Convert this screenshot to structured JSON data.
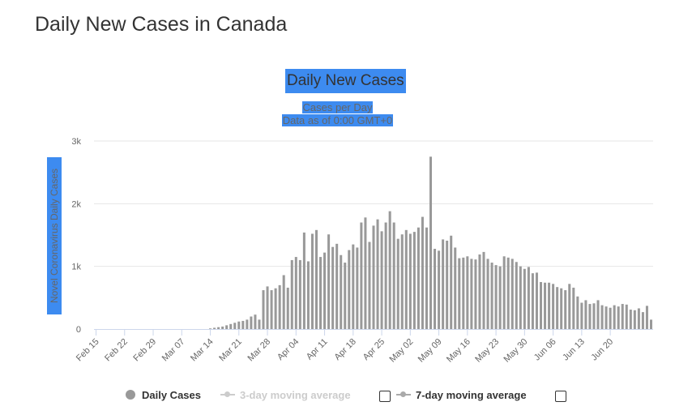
{
  "page": {
    "title": "Daily New Cases in Canada"
  },
  "chart_data": {
    "type": "bar",
    "title": "Daily New Cases",
    "subtitle_lines": [
      "Cases per Day",
      "Data as of 0:00 GMT+0"
    ],
    "xlabel": "",
    "ylabel": "Novel Coronavirus Daily Cases",
    "ylim": [
      0,
      3000
    ],
    "yticks": [
      0,
      1000,
      2000,
      3000
    ],
    "ytick_labels": [
      "0",
      "1k",
      "2k",
      "3k"
    ],
    "grid": true,
    "x_range": [
      "2020-02-15",
      "2020-06-27"
    ],
    "xtick_labels": [
      "Feb 15",
      "Feb 22",
      "Feb 29",
      "Mar 07",
      "Mar 14",
      "Mar 21",
      "Mar 28",
      "Apr 04",
      "Apr 11",
      "Apr 18",
      "Apr 25",
      "May 02",
      "May 09",
      "May 16",
      "May 23",
      "May 30",
      "Jun 06",
      "Jun 13",
      "Jun 20"
    ],
    "bar_color": "#999999",
    "series": [
      {
        "name": "Daily Cases",
        "values": [
          0,
          0,
          0,
          0,
          0,
          0,
          0,
          0,
          0,
          0,
          0,
          0,
          0,
          0,
          0,
          0,
          0,
          0,
          0,
          0,
          0,
          0,
          0,
          0,
          0,
          0,
          0,
          0,
          10,
          20,
          30,
          40,
          60,
          80,
          100,
          120,
          130,
          150,
          200,
          230,
          150,
          620,
          680,
          620,
          650,
          700,
          860,
          660,
          1100,
          1150,
          1100,
          1540,
          1080,
          1520,
          1580,
          1150,
          1220,
          1510,
          1310,
          1360,
          1180,
          1060,
          1260,
          1350,
          1300,
          1700,
          1780,
          1390,
          1650,
          1750,
          1560,
          1700,
          1880,
          1700,
          1440,
          1510,
          1580,
          1520,
          1550,
          1620,
          1790,
          1620,
          2750,
          1280,
          1250,
          1430,
          1410,
          1490,
          1300,
          1130,
          1140,
          1160,
          1120,
          1110,
          1190,
          1230,
          1120,
          1060,
          1020,
          1000,
          1160,
          1140,
          1120,
          1070,
          1000,
          960,
          990,
          890,
          900,
          750,
          740,
          740,
          720,
          670,
          650,
          620,
          720,
          660,
          520,
          420,
          460,
          400,
          410,
          460,
          380,
          360,
          340,
          380,
          360,
          400,
          390,
          310,
          300,
          330,
          270,
          370,
          150
        ]
      }
    ],
    "legend": {
      "placement": "bottom",
      "items": [
        {
          "label": "Daily Cases",
          "color": "#999999",
          "enabled": true
        },
        {
          "label": "3-day moving average",
          "color": "#cccccc",
          "enabled": false
        },
        {
          "label": "7-day moving average",
          "color": "#aaaaaa",
          "enabled": true
        }
      ]
    }
  }
}
